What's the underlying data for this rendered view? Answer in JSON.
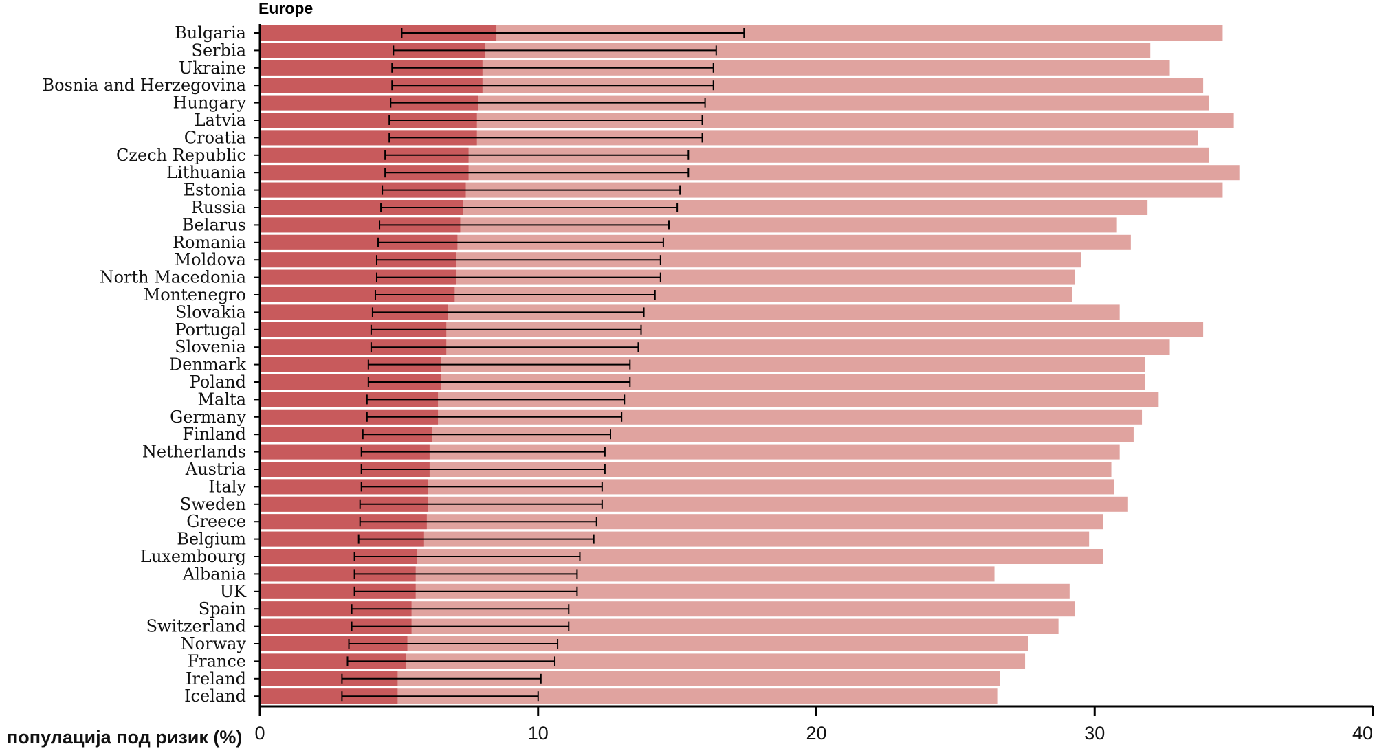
{
  "chart_data": {
    "type": "bar",
    "title": "Europe",
    "xlabel": "популација под ризик (%)",
    "ylabel": "",
    "xlim": [
      0,
      40
    ],
    "xticks": [
      0,
      10,
      20,
      30,
      40
    ],
    "grid": false,
    "colors": {
      "inner": "#c85a5c",
      "outer": "#e0a39f",
      "error": "#000000"
    },
    "categories": [
      "Bulgaria",
      "Serbia",
      "Ukraine",
      "Bosnia and Herzegovina",
      "Hungary",
      "Latvia",
      "Croatia",
      "Czech Republic",
      "Lithuania",
      "Estonia",
      "Russia",
      "Belarus",
      "Romania",
      "Moldova",
      "North Macedonia",
      "Montenegro",
      "Slovakia",
      "Portugal",
      "Slovenia",
      "Denmark",
      "Poland",
      "Malta",
      "Germany",
      "Finland",
      "Netherlands",
      "Austria",
      "Italy",
      "Sweden",
      "Greece",
      "Belgium",
      "Luxembourg",
      "Albania",
      "UK",
      "Spain",
      "Switzerland",
      "Norway",
      "France",
      "Ireland",
      "Iceland"
    ],
    "series": [
      {
        "values": [
          8.5,
          8.1,
          8.0,
          8.0,
          7.85,
          7.8,
          7.8,
          7.5,
          7.5,
          7.4,
          7.3,
          7.2,
          7.1,
          7.05,
          7.05,
          7.0,
          6.75,
          6.7,
          6.7,
          6.5,
          6.5,
          6.4,
          6.4,
          6.2,
          6.1,
          6.1,
          6.05,
          6.05,
          6.0,
          5.9,
          5.65,
          5.6,
          5.6,
          5.45,
          5.45,
          5.3,
          5.25,
          4.95,
          4.95
        ]
      },
      {
        "values": [
          34.6,
          32.0,
          32.7,
          33.9,
          34.1,
          35.0,
          33.7,
          34.1,
          35.2,
          34.6,
          31.9,
          30.8,
          31.3,
          29.5,
          29.3,
          29.2,
          30.9,
          33.9,
          32.7,
          31.8,
          31.8,
          32.3,
          31.7,
          31.4,
          30.9,
          30.6,
          30.7,
          31.2,
          30.3,
          29.8,
          30.3,
          26.4,
          29.1,
          29.3,
          28.7,
          27.6,
          27.5,
          26.6,
          26.5
        ]
      }
    ],
    "error_low": [
      5.1,
      4.8,
      4.75,
      4.75,
      4.7,
      4.65,
      4.65,
      4.5,
      4.5,
      4.4,
      4.35,
      4.3,
      4.25,
      4.2,
      4.2,
      4.15,
      4.05,
      4.0,
      4.0,
      3.9,
      3.9,
      3.85,
      3.85,
      3.7,
      3.65,
      3.65,
      3.65,
      3.6,
      3.6,
      3.55,
      3.4,
      3.4,
      3.4,
      3.3,
      3.3,
      3.2,
      3.15,
      2.95,
      2.95
    ],
    "error_high": [
      17.4,
      16.4,
      16.3,
      16.3,
      16.0,
      15.9,
      15.9,
      15.4,
      15.4,
      15.1,
      15.0,
      14.7,
      14.5,
      14.4,
      14.4,
      14.2,
      13.8,
      13.7,
      13.6,
      13.3,
      13.3,
      13.1,
      13.0,
      12.6,
      12.4,
      12.4,
      12.3,
      12.3,
      12.1,
      12.0,
      11.5,
      11.4,
      11.4,
      11.1,
      11.1,
      10.7,
      10.6,
      10.1,
      10.0
    ]
  }
}
